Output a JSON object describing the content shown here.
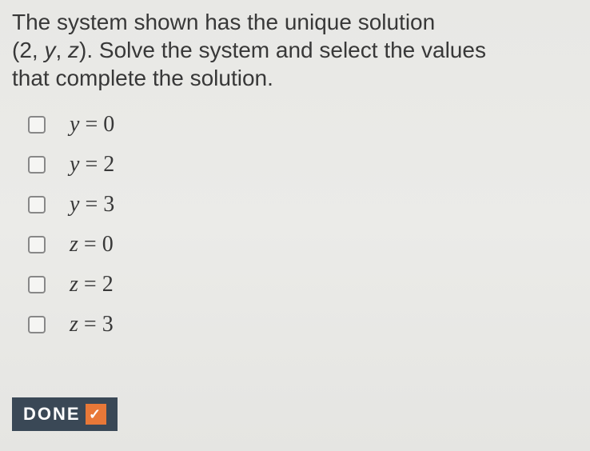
{
  "question": {
    "line1": "The system shown has the unique solution",
    "line2_prefix": "(2, ",
    "line2_var1": "y",
    "line2_mid": ", ",
    "line2_var2": "z",
    "line2_suffix": "). Solve the system and select the values",
    "line3": "that complete the solution."
  },
  "options": [
    {
      "var": "y",
      "op": " = ",
      "val": "0"
    },
    {
      "var": "y",
      "op": " = ",
      "val": "2"
    },
    {
      "var": "y",
      "op": " = ",
      "val": "3"
    },
    {
      "var": "z",
      "op": " = ",
      "val": "0"
    },
    {
      "var": "z",
      "op": " = ",
      "val": "2"
    },
    {
      "var": "z",
      "op": " = ",
      "val": "3"
    }
  ],
  "done_label": "DONE",
  "colors": {
    "text": "#383838",
    "checkbox_border": "#888888",
    "done_bg": "#3a4856",
    "done_check_bg": "#e87838",
    "background": "#e8e8e5"
  }
}
